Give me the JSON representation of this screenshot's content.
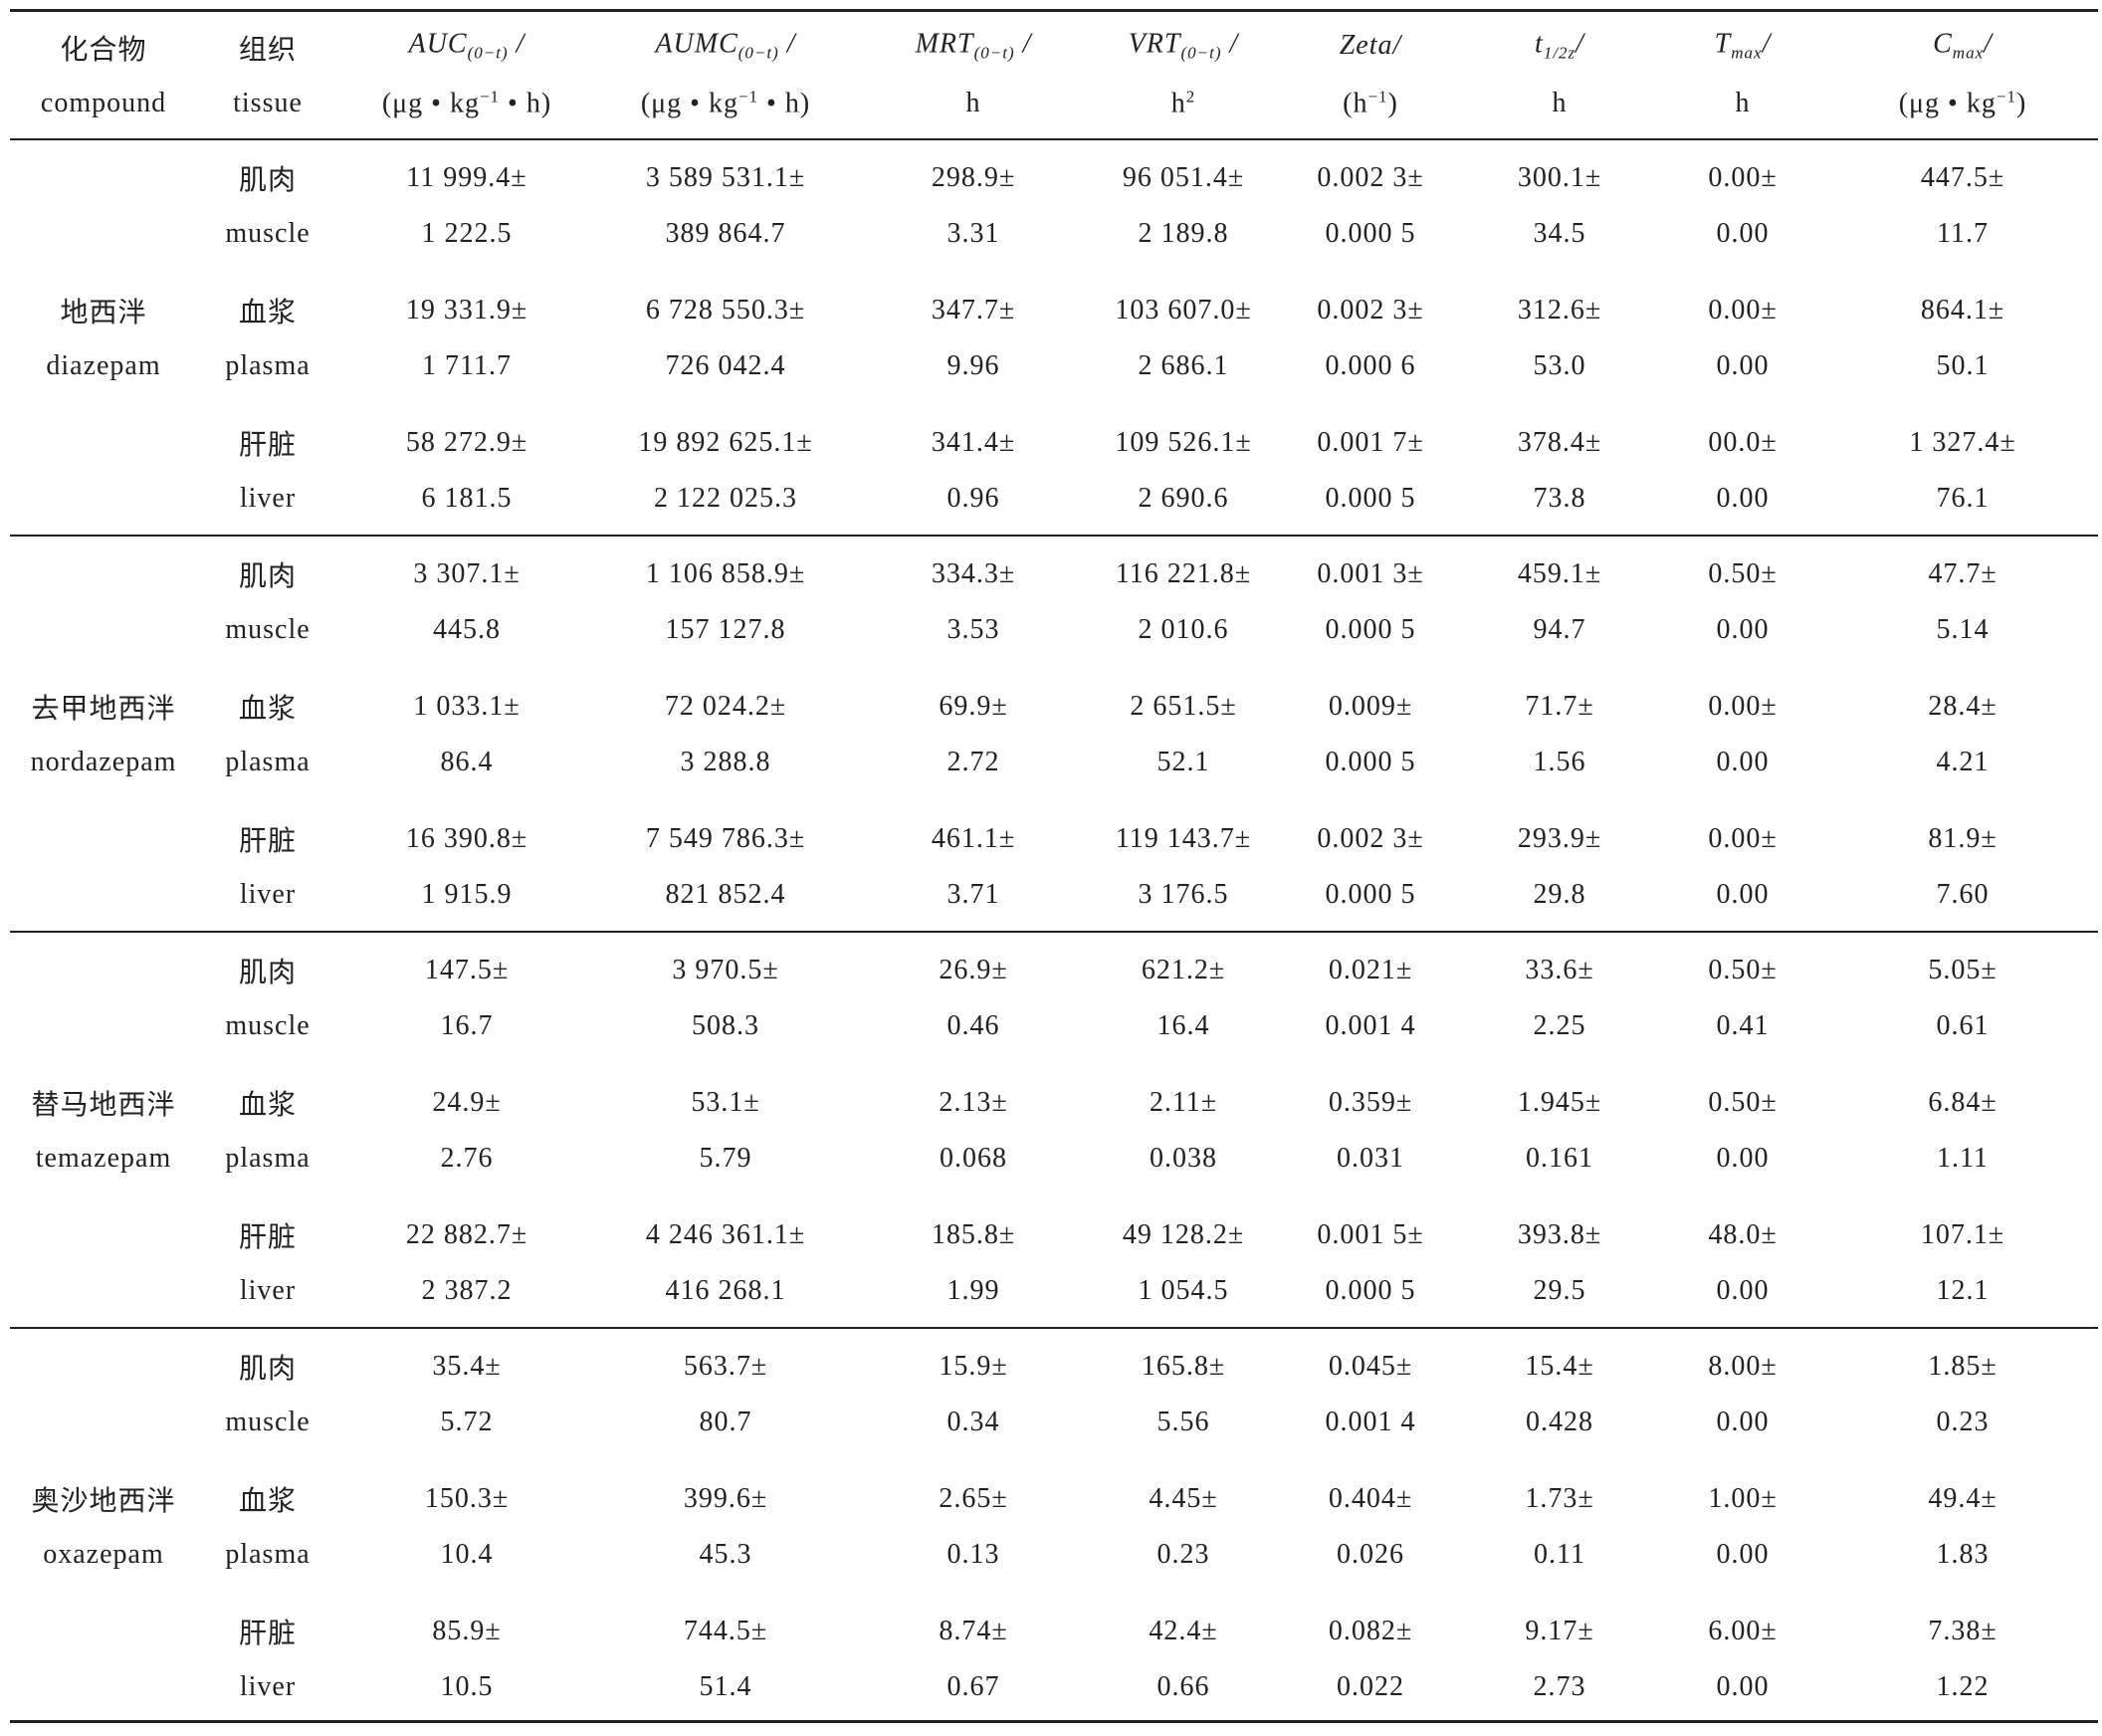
{
  "header": {
    "compound": {
      "zh": "化合物",
      "en": "compound"
    },
    "tissue": {
      "zh": "组织",
      "en": "tissue"
    },
    "columns": [
      {
        "main": "AUC",
        "sub": "(0−t)",
        "sep": " /",
        "unit": "(μg • kg",
        "unit_sup": "−1",
        "unit_end": " • h)"
      },
      {
        "main": "AUMC",
        "sub": "(0−t)",
        "sep": " /",
        "unit": "(μg • kg",
        "unit_sup": "−1",
        "unit_end": " • h)"
      },
      {
        "main": "MRT",
        "sub": "(0−t)",
        "sep": " /",
        "unit": "h",
        "unit_sup": "",
        "unit_end": ""
      },
      {
        "main": "VRT",
        "sub": "(0−t)",
        "sep": " /",
        "unit": "h",
        "unit_sup": "2",
        "unit_end": ""
      },
      {
        "main": "Zeta",
        "sub": "",
        "sep": "/",
        "unit": "(h",
        "unit_sup": "−1",
        "unit_end": ")"
      },
      {
        "main": "t",
        "sub": "1/2z",
        "sep": "/",
        "unit": "h",
        "unit_sup": "",
        "unit_end": ""
      },
      {
        "main": "T",
        "sub": "max",
        "sep": "/",
        "unit": "h",
        "unit_sup": "",
        "unit_end": ""
      },
      {
        "main": "C",
        "sub": "max",
        "sep": "/",
        "unit": "(μg • kg",
        "unit_sup": "−1",
        "unit_end": ")"
      }
    ]
  },
  "groups": [
    {
      "zh": "地西泮",
      "en": "diazepam",
      "tissues": [
        {
          "zh": "肌肉",
          "en": "muscle",
          "values": [
            [
              "11 999.4±",
              "1 222.5"
            ],
            [
              "3 589 531.1±",
              "389 864.7"
            ],
            [
              "298.9±",
              "3.31"
            ],
            [
              "96 051.4±",
              "2 189.8"
            ],
            [
              "0.002 3±",
              "0.000 5"
            ],
            [
              "300.1±",
              "34.5"
            ],
            [
              "0.00±",
              "0.00"
            ],
            [
              "447.5±",
              "11.7"
            ]
          ]
        },
        {
          "zh": "血浆",
          "en": "plasma",
          "values": [
            [
              "19 331.9±",
              "1 711.7"
            ],
            [
              "6 728 550.3±",
              "726 042.4"
            ],
            [
              "347.7±",
              "9.96"
            ],
            [
              "103 607.0±",
              "2 686.1"
            ],
            [
              "0.002 3±",
              "0.000 6"
            ],
            [
              "312.6±",
              "53.0"
            ],
            [
              "0.00±",
              "0.00"
            ],
            [
              "864.1±",
              "50.1"
            ]
          ]
        },
        {
          "zh": "肝脏",
          "en": "liver",
          "values": [
            [
              "58 272.9±",
              "6 181.5"
            ],
            [
              "19 892 625.1±",
              "2 122 025.3"
            ],
            [
              "341.4±",
              "0.96"
            ],
            [
              "109 526.1±",
              "2 690.6"
            ],
            [
              "0.001 7±",
              "0.000 5"
            ],
            [
              "378.4±",
              "73.8"
            ],
            [
              "00.0±",
              "0.00"
            ],
            [
              "1 327.4±",
              "76.1"
            ]
          ]
        }
      ]
    },
    {
      "zh": "去甲地西泮",
      "en": "nordazepam",
      "tissues": [
        {
          "zh": "肌肉",
          "en": "muscle",
          "values": [
            [
              "3 307.1±",
              "445.8"
            ],
            [
              "1 106 858.9±",
              "157 127.8"
            ],
            [
              "334.3±",
              "3.53"
            ],
            [
              "116 221.8±",
              "2 010.6"
            ],
            [
              "0.001 3±",
              "0.000 5"
            ],
            [
              "459.1±",
              "94.7"
            ],
            [
              "0.50±",
              "0.00"
            ],
            [
              "47.7±",
              "5.14"
            ]
          ]
        },
        {
          "zh": "血浆",
          "en": "plasma",
          "values": [
            [
              "1 033.1±",
              "86.4"
            ],
            [
              "72 024.2±",
              "3 288.8"
            ],
            [
              "69.9±",
              "2.72"
            ],
            [
              "2 651.5±",
              "52.1"
            ],
            [
              "0.009±",
              "0.000 5"
            ],
            [
              "71.7±",
              "1.56"
            ],
            [
              "0.00±",
              "0.00"
            ],
            [
              "28.4±",
              "4.21"
            ]
          ]
        },
        {
          "zh": "肝脏",
          "en": "liver",
          "values": [
            [
              "16 390.8±",
              "1 915.9"
            ],
            [
              "7 549 786.3±",
              "821 852.4"
            ],
            [
              "461.1±",
              "3.71"
            ],
            [
              "119 143.7±",
              "3 176.5"
            ],
            [
              "0.002 3±",
              "0.000 5"
            ],
            [
              "293.9±",
              "29.8"
            ],
            [
              "0.00±",
              "0.00"
            ],
            [
              "81.9±",
              "7.60"
            ]
          ]
        }
      ]
    },
    {
      "zh": "替马地西泮",
      "en": "temazepam",
      "tissues": [
        {
          "zh": "肌肉",
          "en": "muscle",
          "values": [
            [
              "147.5±",
              "16.7"
            ],
            [
              "3 970.5±",
              "508.3"
            ],
            [
              "26.9±",
              "0.46"
            ],
            [
              "621.2±",
              "16.4"
            ],
            [
              "0.021±",
              "0.001 4"
            ],
            [
              "33.6±",
              "2.25"
            ],
            [
              "0.50±",
              "0.41"
            ],
            [
              "5.05±",
              "0.61"
            ]
          ]
        },
        {
          "zh": "血浆",
          "en": "plasma",
          "values": [
            [
              "24.9±",
              "2.76"
            ],
            [
              "53.1±",
              "5.79"
            ],
            [
              "2.13±",
              "0.068"
            ],
            [
              "2.11±",
              "0.038"
            ],
            [
              "0.359±",
              "0.031"
            ],
            [
              "1.945±",
              "0.161"
            ],
            [
              "0.50±",
              "0.00"
            ],
            [
              "6.84±",
              "1.11"
            ]
          ]
        },
        {
          "zh": "肝脏",
          "en": "liver",
          "values": [
            [
              "22 882.7±",
              "2 387.2"
            ],
            [
              "4 246 361.1±",
              "416 268.1"
            ],
            [
              "185.8±",
              "1.99"
            ],
            [
              "49 128.2±",
              "1 054.5"
            ],
            [
              "0.001 5±",
              "0.000 5"
            ],
            [
              "393.8±",
              "29.5"
            ],
            [
              "48.0±",
              "0.00"
            ],
            [
              "107.1±",
              "12.1"
            ]
          ]
        }
      ]
    },
    {
      "zh": "奥沙地西泮",
      "en": "oxazepam",
      "tissues": [
        {
          "zh": "肌肉",
          "en": "muscle",
          "values": [
            [
              "35.4±",
              "5.72"
            ],
            [
              "563.7±",
              "80.7"
            ],
            [
              "15.9±",
              "0.34"
            ],
            [
              "165.8±",
              "5.56"
            ],
            [
              "0.045±",
              "0.001 4"
            ],
            [
              "15.4±",
              "0.428"
            ],
            [
              "8.00±",
              "0.00"
            ],
            [
              "1.85±",
              "0.23"
            ]
          ]
        },
        {
          "zh": "血浆",
          "en": "plasma",
          "values": [
            [
              "150.3±",
              "10.4"
            ],
            [
              "399.6±",
              "45.3"
            ],
            [
              "2.65±",
              "0.13"
            ],
            [
              "4.45±",
              "0.23"
            ],
            [
              "0.404±",
              "0.026"
            ],
            [
              "1.73±",
              "0.11"
            ],
            [
              "1.00±",
              "0.00"
            ],
            [
              "49.4±",
              "1.83"
            ]
          ]
        },
        {
          "zh": "肝脏",
          "en": "liver",
          "values": [
            [
              "85.9±",
              "10.5"
            ],
            [
              "744.5±",
              "51.4"
            ],
            [
              "8.74±",
              "0.67"
            ],
            [
              "42.4±",
              "0.66"
            ],
            [
              "0.082±",
              "0.022"
            ],
            [
              "9.17±",
              "2.73"
            ],
            [
              "6.00±",
              "0.00"
            ],
            [
              "7.38±",
              "1.22"
            ]
          ]
        }
      ]
    }
  ]
}
